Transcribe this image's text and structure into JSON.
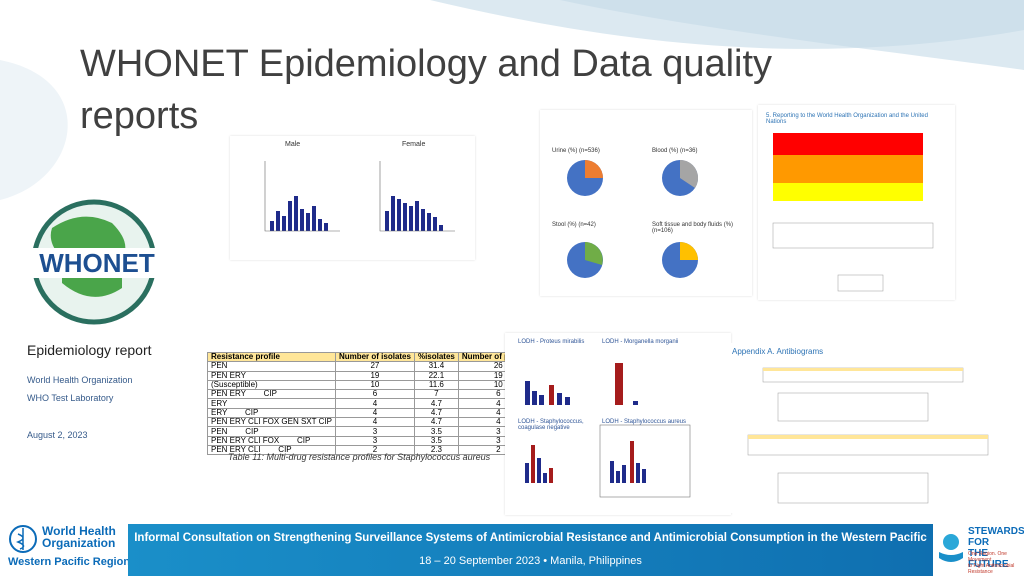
{
  "title": "WHONET Epidemiology and Data quality reports",
  "logo": {
    "text": "WHONET"
  },
  "report": {
    "heading": "Epidemiology report",
    "org": "World Health Organization",
    "lab": "WHO Test Laboratory",
    "date": "August 2, 2023"
  },
  "table": {
    "header": [
      "Resistance profile",
      "Number of isolates",
      "%isolates",
      "Number of patients"
    ],
    "rows": [
      [
        "PEN",
        27,
        31.4,
        26
      ],
      [
        "PEN ERY",
        19,
        22.1,
        19
      ],
      [
        "(Susceptible)",
        10,
        11.6,
        10
      ],
      [
        "PEN ERY        CIP",
        6,
        7,
        6
      ],
      [
        "ERY",
        4,
        4.7,
        4
      ],
      [
        "ERY        CIP",
        4,
        4.7,
        4
      ],
      [
        "PEN ERY CLI FOX GEN SXT CIP",
        4,
        4.7,
        4
      ],
      [
        "PEN        CIP",
        3,
        3.5,
        3
      ],
      [
        "PEN ERY CLI FOX        CIP",
        3,
        3.5,
        3
      ],
      [
        "PEN ERY CLI        CIP",
        2,
        2.3,
        2
      ]
    ],
    "caption": "Table 11: Multi-drug resistance profiles for Staphylococcus aureus"
  },
  "thumbnails": {
    "male": "Male",
    "female": "Female",
    "pies": [
      "Urine (%) (n=536)",
      "Blood (%) (n=36)",
      "Stool (%) (n=42)",
      "Soft tissue and body fluids (%) (n=106)"
    ],
    "lodh": [
      "LODH - Proteus mirabilis",
      "LODH - Morganella morganii",
      "LODH - Staphylococcus, coagulase negative",
      "LODH - Staphylococcus aureus"
    ],
    "who_section": "5. Reporting to the World Health Organization and the United Nations",
    "appendix": "Appendix A. Antibiograms"
  },
  "footer": {
    "who": [
      "World Health",
      "Organization",
      "Western Pacific Region"
    ],
    "banner": "Informal Consultation on Strengthening Surveillance Systems of Antimicrobial Resistance and Antimicrobial Consumption in the Western Pacific",
    "dates": "18 – 20 September 2023 • Manila, Philippines",
    "stewards": [
      "STEWARDS FOR",
      "THE FUTURE"
    ],
    "tagline": [
      "One Region. One Movement",
      "to Fight Antimicrobial Resistance"
    ]
  }
}
